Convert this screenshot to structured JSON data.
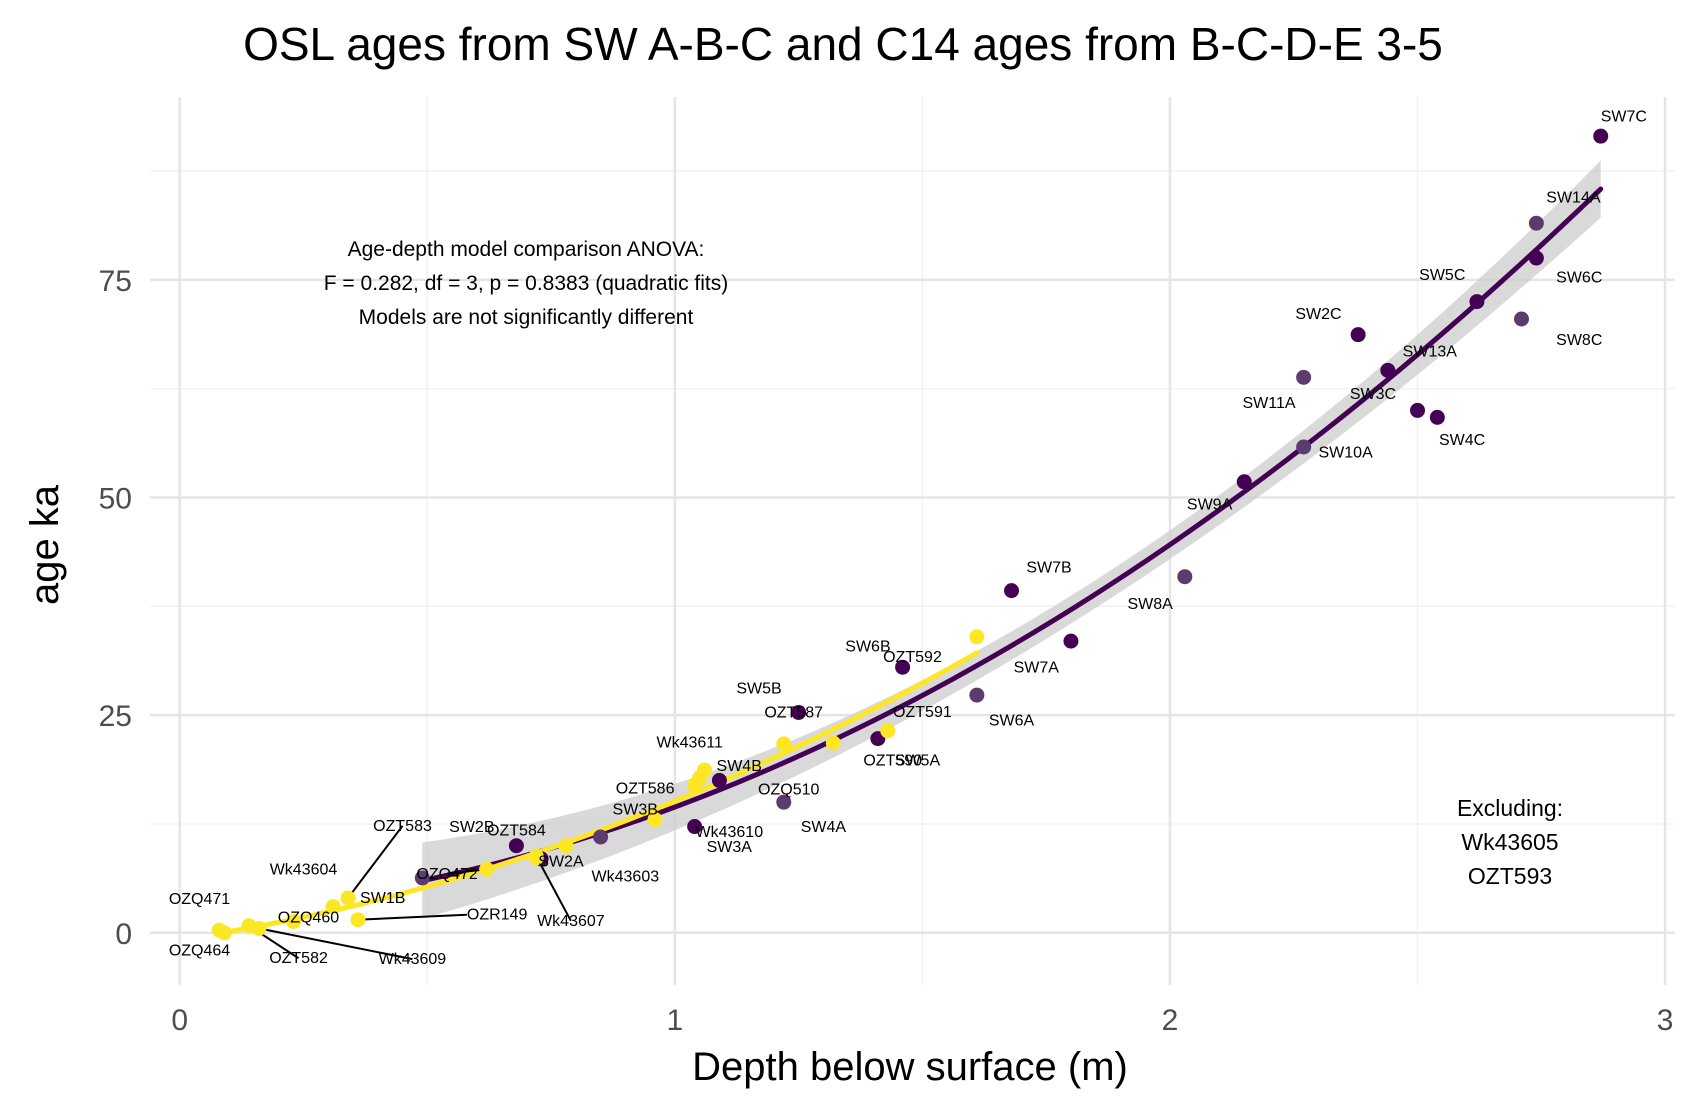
{
  "chart_data": {
    "type": "scatter",
    "title": "OSL ages from SW A-B-C and C14 ages from B-C-D-E 3-5",
    "xlabel": "Depth below surface (m)",
    "ylabel": "age ka",
    "xlim": [
      -0.06,
      3.02
    ],
    "ylim": [
      -6,
      96
    ],
    "x_ticks": [
      0,
      1,
      2,
      3
    ],
    "y_ticks": [
      0,
      25,
      50,
      75
    ],
    "grid": true,
    "colors": {
      "osl": "#440154",
      "osl_light": "#5c3b6e",
      "c14": "#fde725",
      "ribbon": "#cccccc",
      "grid_major": "#e5e5e5",
      "grid_minor": "#f2f2f2"
    },
    "annotation": [
      "Age-depth model comparison ANOVA:",
      "F = 0.282, df = 3, p = 0.8383 (quadratic fits)",
      "Models are not significantly different"
    ],
    "excluding": [
      "Excluding:",
      "Wk43605",
      "OZT593"
    ],
    "series": [
      {
        "color": "#440154",
        "points": [
          {
            "label": "SW7C",
            "x": 2.87,
            "y": 91.5,
            "lx": 2.87,
            "ly": 93.2,
            "anchor": "start"
          },
          {
            "label": "SW14A",
            "x": 2.74,
            "y": 81.5,
            "lx": 2.76,
            "ly": 83.9,
            "anchor": "start"
          },
          {
            "label": "SW6C",
            "x": 2.74,
            "y": 77.5,
            "lx": 2.78,
            "ly": 74.7,
            "anchor": "start"
          },
          {
            "label": "SW5C",
            "x": 2.62,
            "y": 72.5,
            "lx": 2.55,
            "ly": 75.0,
            "anchor": "middle"
          },
          {
            "label": "SW8C",
            "x": 2.71,
            "y": 70.5,
            "lx": 2.78,
            "ly": 67.5,
            "anchor": "start"
          },
          {
            "label": "SW2C",
            "x": 2.38,
            "y": 68.7,
            "lx": 2.3,
            "ly": 70.5,
            "anchor": "middle"
          },
          {
            "label": "SW13A",
            "x": 2.44,
            "y": 64.6,
            "lx": 2.47,
            "ly": 66.2,
            "anchor": "start"
          },
          {
            "label": "SW11A",
            "x": 2.27,
            "y": 63.8,
            "lx": 2.2,
            "ly": 60.3,
            "anchor": "middle"
          },
          {
            "label": "SW3C",
            "x": 2.5,
            "y": 60.0,
            "lx": 2.41,
            "ly": 61.3,
            "anchor": "middle"
          },
          {
            "label": "SW4C",
            "x": 2.54,
            "y": 59.2,
            "lx": 2.59,
            "ly": 56.0,
            "anchor": "middle"
          },
          {
            "label": "SW10A",
            "x": 2.27,
            "y": 55.8,
            "lx": 2.3,
            "ly": 54.6,
            "anchor": "start"
          },
          {
            "label": "SW9A",
            "x": 2.15,
            "y": 51.8,
            "lx": 2.08,
            "ly": 48.6,
            "anchor": "middle"
          },
          {
            "label": "SW7B",
            "x": 1.68,
            "y": 39.3,
            "lx": 1.71,
            "ly": 41.4,
            "anchor": "start"
          },
          {
            "label": "SW8A",
            "x": 2.03,
            "y": 40.9,
            "lx": 1.96,
            "ly": 37.2,
            "anchor": "middle"
          },
          {
            "label": "SW7A",
            "x": 1.8,
            "y": 33.5,
            "lx": 1.73,
            "ly": 29.9,
            "anchor": "middle"
          },
          {
            "label": "SW6B",
            "x": 1.46,
            "y": 30.5,
            "lx": 1.39,
            "ly": 32.3,
            "anchor": "middle"
          },
          {
            "label": "SW6A",
            "x": 1.61,
            "y": 27.3,
            "lx": 1.68,
            "ly": 23.8,
            "anchor": "middle"
          },
          {
            "label": "SW5B",
            "x": 1.25,
            "y": 25.3,
            "lx": 1.17,
            "ly": 27.5,
            "anchor": "middle"
          },
          {
            "label": "SW5A",
            "x": 1.41,
            "y": 22.3,
            "lx": 1.49,
            "ly": 19.2,
            "anchor": "middle"
          },
          {
            "label": "SW4A",
            "x": 1.22,
            "y": 15.0,
            "lx": 1.3,
            "ly": 11.6,
            "anchor": "middle"
          },
          {
            "label": "SW3A",
            "x": 1.04,
            "y": 12.2,
            "lx": 1.11,
            "ly": 9.3,
            "anchor": "middle"
          },
          {
            "label": "SW2B",
            "x": 0.68,
            "y": 10.0,
            "lx": 0.59,
            "ly": 11.6,
            "anchor": "middle"
          },
          {
            "label": "SW3B",
            "x": 0.85,
            "y": 11.0,
            "lx": 0.92,
            "ly": 13.6,
            "anchor": "middle"
          },
          {
            "label": "SW4B",
            "x": 1.09,
            "y": 17.5,
            "lx": 1.13,
            "ly": 18.6,
            "anchor": "middle"
          },
          {
            "label": "SW2A",
            "x": 0.73,
            "y": 8.5,
            "lx": 0.77,
            "ly": 7.6,
            "anchor": "middle"
          },
          {
            "label": "SW1B",
            "x": 0.49,
            "y": 6.3,
            "lx": 0.41,
            "ly": 3.4,
            "anchor": "middle"
          }
        ]
      },
      {
        "color": "#fde725",
        "points": [
          {
            "label": "OZT592",
            "x": 1.61,
            "y": 34.0,
            "lx": 1.48,
            "ly": 31.1,
            "anchor": "middle"
          },
          {
            "label": "OZT591",
            "x": 1.43,
            "y": 23.2,
            "lx": 1.5,
            "ly": 24.8,
            "anchor": "middle"
          },
          {
            "label": "OZT587",
            "x": 1.22,
            "y": 21.7,
            "lx": 1.24,
            "ly": 24.7,
            "anchor": "middle"
          },
          {
            "label": "OZT590",
            "x": 1.32,
            "y": 21.8,
            "lx": 1.44,
            "ly": 19.2,
            "anchor": "middle"
          },
          {
            "label": "Wk43611",
            "x": 1.06,
            "y": 18.7,
            "lx": 1.03,
            "ly": 21.3,
            "anchor": "middle"
          },
          {
            "label": "OZQ510",
            "x": 1.05,
            "y": 17.8,
            "lx": 1.23,
            "ly": 15.9,
            "anchor": "middle"
          },
          {
            "label": "OZT586",
            "x": 1.04,
            "y": 17.0,
            "lx": 0.94,
            "ly": 16.0,
            "anchor": "middle"
          },
          {
            "label": "Wk43610",
            "x": 0.96,
            "y": 13.0,
            "lx": 1.11,
            "ly": 11.0,
            "anchor": "middle"
          },
          {
            "label": "OZT584",
            "x": 0.78,
            "y": 10.0,
            "lx": 0.68,
            "ly": 11.2,
            "anchor": "middle"
          },
          {
            "label": "Wk43603",
            "x": 0.72,
            "y": 8.6,
            "lx": 0.9,
            "ly": 5.9,
            "anchor": "middle"
          },
          {
            "label": "Wk43607",
            "x": 0.72,
            "y": 8.8,
            "lx": 0.79,
            "ly": 0.8,
            "anchor": "middle",
            "line": true
          },
          {
            "label": "OZQ472",
            "x": 0.62,
            "y": 7.3,
            "lx": 0.54,
            "ly": 6.2,
            "anchor": "middle",
            "line": true
          },
          {
            "label": "OZT583",
            "x": 0.34,
            "y": 4.0,
            "lx": 0.45,
            "ly": 11.7,
            "anchor": "middle",
            "line": true
          },
          {
            "label": "Wk43604",
            "x": 0.31,
            "y": 3.0,
            "lx": 0.25,
            "ly": 6.7,
            "anchor": "middle"
          },
          {
            "label": "OZR149",
            "x": 0.36,
            "y": 1.5,
            "lx": 0.58,
            "ly": 1.5,
            "anchor": "start",
            "line": true
          },
          {
            "label": "OZQ460",
            "x": 0.23,
            "y": 1.3,
            "lx": 0.26,
            "ly": 1.2,
            "anchor": "middle"
          },
          {
            "label": "OZQ471",
            "x": 0.08,
            "y": 0.3,
            "lx": 0.04,
            "ly": 3.3,
            "anchor": "middle"
          },
          {
            "label": "OZT582",
            "x": 0.14,
            "y": 0.8,
            "lx": 0.24,
            "ly": -3.5,
            "anchor": "middle",
            "line": true
          },
          {
            "label": "Wk43609",
            "x": 0.16,
            "y": 0.5,
            "lx": 0.47,
            "ly": -3.6,
            "anchor": "middle",
            "line": true
          },
          {
            "label": "OZQ464",
            "x": 0.09,
            "y": 0.0,
            "lx": 0.04,
            "ly": -2.6,
            "anchor": "middle"
          }
        ]
      }
    ]
  }
}
